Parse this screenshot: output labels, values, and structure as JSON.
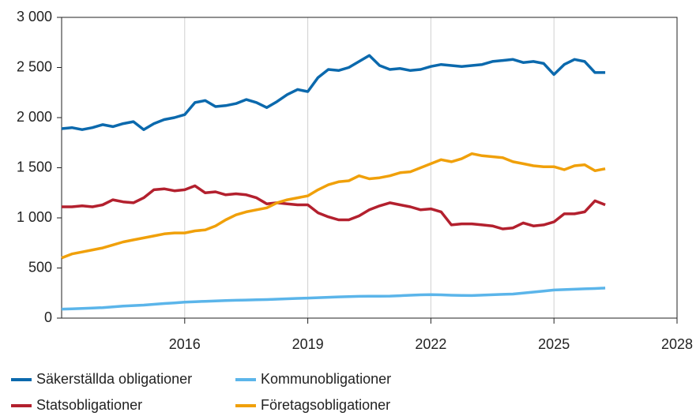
{
  "chart_data": {
    "type": "line",
    "x": [
      2013,
      2013.25,
      2013.5,
      2013.75,
      2014,
      2014.25,
      2014.5,
      2014.75,
      2015,
      2015.25,
      2015.5,
      2015.75,
      2016,
      2016.25,
      2016.5,
      2016.75,
      2017,
      2017.25,
      2017.5,
      2017.75,
      2018,
      2018.25,
      2018.5,
      2018.75,
      2019,
      2019.25,
      2019.5,
      2019.75,
      2020,
      2020.25,
      2020.5,
      2020.75,
      2021,
      2021.25,
      2021.5,
      2021.75,
      2022,
      2022.25,
      2022.5,
      2022.75,
      2023,
      2023.25,
      2023.5,
      2023.75,
      2024,
      2024.25,
      2024.5,
      2024.75,
      2025,
      2025.25,
      2025.5,
      2025.75,
      2026,
      2026.25
    ],
    "series": [
      {
        "name": "Säkerställda obligationer",
        "color": "#0b69ad",
        "values": [
          1890,
          1900,
          1880,
          1900,
          1930,
          1910,
          1940,
          1960,
          1880,
          1940,
          1980,
          2000,
          2030,
          2150,
          2170,
          2110,
          2120,
          2140,
          2180,
          2150,
          2100,
          2160,
          2230,
          2280,
          2260,
          2400,
          2480,
          2470,
          2500,
          2560,
          2620,
          2520,
          2480,
          2490,
          2470,
          2480,
          2510,
          2530,
          2520,
          2510,
          2520,
          2530,
          2560,
          2570,
          2580,
          2550,
          2560,
          2540,
          2430,
          2530,
          2580,
          2560,
          2450,
          2450
        ]
      },
      {
        "name": "Kommunobligationer",
        "color": "#5bb5ea",
        "values": [
          90,
          92,
          96,
          100,
          105,
          112,
          120,
          125,
          130,
          138,
          146,
          152,
          160,
          164,
          168,
          172,
          175,
          178,
          180,
          183,
          185,
          189,
          193,
          197,
          200,
          204,
          208,
          212,
          215,
          217,
          218,
          219,
          220,
          224,
          228,
          232,
          235,
          232,
          228,
          226,
          225,
          229,
          233,
          237,
          240,
          250,
          260,
          270,
          280,
          284,
          288,
          292,
          295,
          300
        ]
      },
      {
        "name": "Statsobligationer",
        "color": "#b3202e",
        "values": [
          1110,
          1110,
          1120,
          1110,
          1130,
          1180,
          1160,
          1150,
          1200,
          1280,
          1290,
          1270,
          1280,
          1320,
          1250,
          1260,
          1230,
          1240,
          1230,
          1200,
          1140,
          1150,
          1140,
          1130,
          1130,
          1050,
          1010,
          980,
          980,
          1020,
          1080,
          1120,
          1150,
          1130,
          1110,
          1080,
          1090,
          1060,
          930,
          940,
          940,
          930,
          920,
          890,
          900,
          950,
          920,
          930,
          960,
          1040,
          1040,
          1060,
          1170,
          1130
        ]
      },
      {
        "name": "Företagsobligationer",
        "color": "#f0a00a",
        "values": [
          600,
          640,
          660,
          680,
          700,
          730,
          760,
          780,
          800,
          820,
          840,
          850,
          850,
          870,
          880,
          920,
          980,
          1030,
          1060,
          1080,
          1100,
          1150,
          1180,
          1200,
          1220,
          1280,
          1330,
          1360,
          1370,
          1420,
          1390,
          1400,
          1420,
          1450,
          1460,
          1500,
          1540,
          1580,
          1560,
          1590,
          1640,
          1620,
          1610,
          1600,
          1560,
          1540,
          1520,
          1510,
          1510,
          1480,
          1520,
          1530,
          1470,
          1490
        ]
      }
    ],
    "xlim": [
      2013,
      2028
    ],
    "xticks": [
      2016,
      2019,
      2022,
      2025,
      2028
    ],
    "ylim": [
      0,
      3000
    ],
    "yticks": [
      0,
      500,
      {
        "value": 1000,
        "label": "1 000"
      },
      {
        "value": 1500,
        "label": "1 500"
      },
      {
        "value": 2000,
        "label": "2 000"
      },
      {
        "value": 2500,
        "label": "2 500"
      },
      {
        "value": 3000,
        "label": "3 000"
      }
    ],
    "grid": true
  }
}
